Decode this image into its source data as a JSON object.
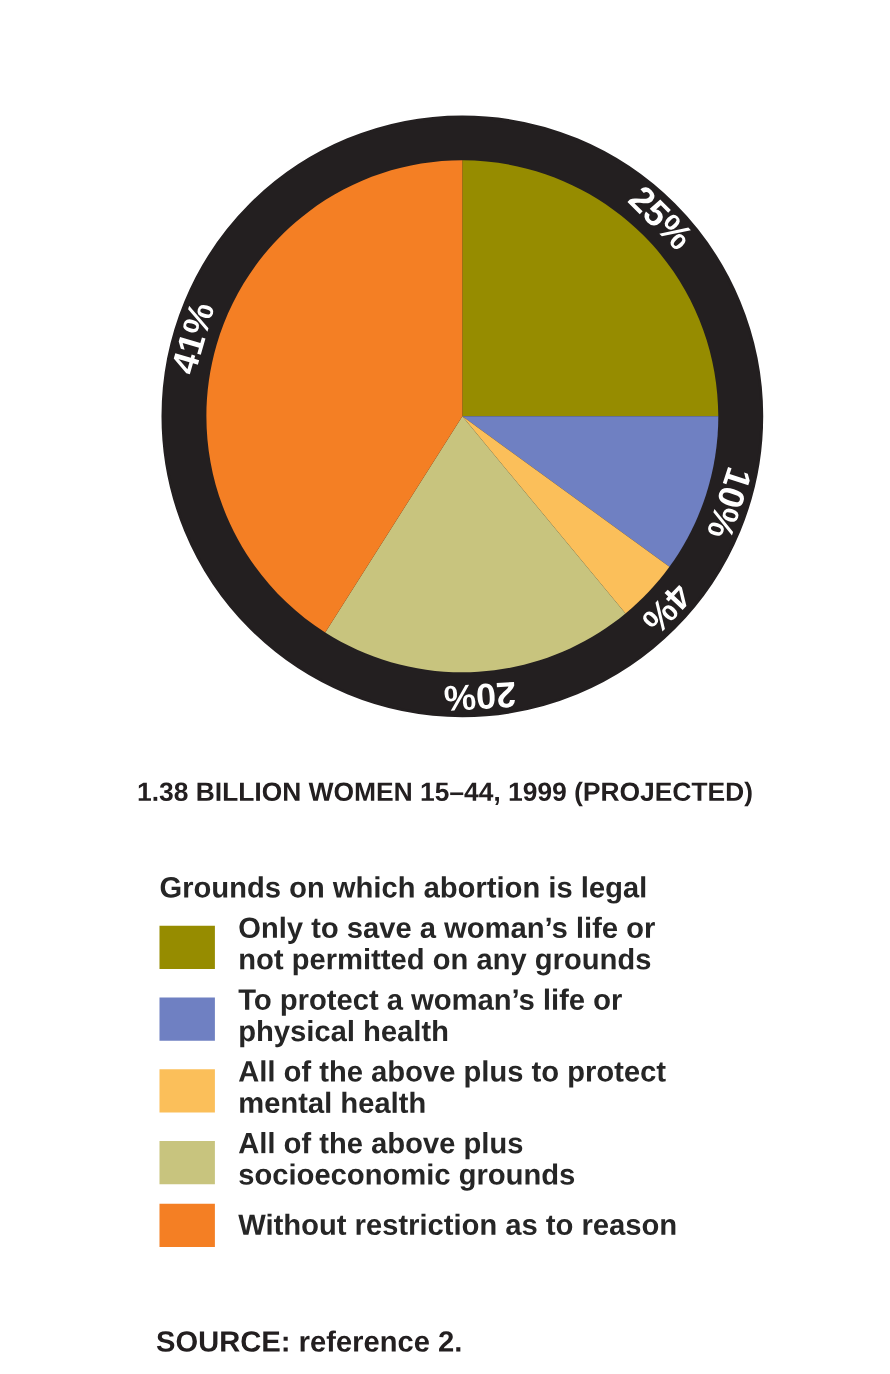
{
  "chart_data": {
    "type": "pie",
    "title": "1.38 BILLION WOMEN 15–44, 1999 (PROJECTED)",
    "legend_title": "Grounds on which abortion is legal",
    "categories": [
      "Only to save a woman’s life or\nnot permitted on any grounds",
      "To protect a woman’s life or\nphysical health",
      "All of the above plus to protect\nmental health",
      "All of the above plus\nsocioeconomic grounds",
      "Without restriction as to reason"
    ],
    "values": [
      25,
      10,
      4,
      20,
      41
    ],
    "colors": [
      "#968c00",
      "#6f80c2",
      "#fbbf5a",
      "#c8c47e",
      "#f47f24"
    ],
    "value_labels": [
      "25%",
      "10%",
      "4%",
      "20%",
      "41%"
    ],
    "legend": "bottom",
    "annotations": [
      "SOURCE: reference 2."
    ]
  }
}
